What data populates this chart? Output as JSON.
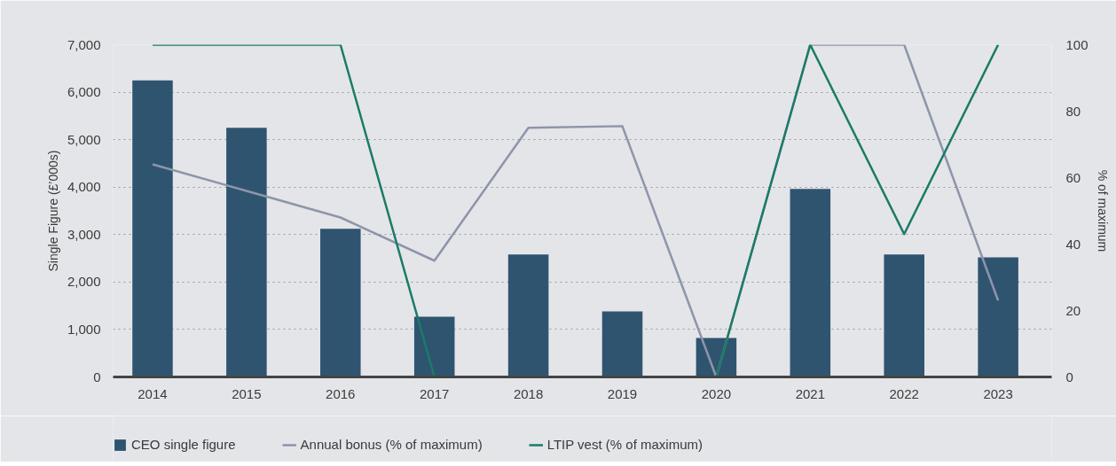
{
  "chart_data": {
    "type": "bar",
    "categories": [
      "2014",
      "2015",
      "2016",
      "2017",
      "2018",
      "2019",
      "2020",
      "2021",
      "2022",
      "2023"
    ],
    "ylabel": "Single Figure (£’000s)",
    "y2label": "% of maximum",
    "ylim": [
      0,
      7000
    ],
    "yticks": [
      0,
      {
        "value": 1000,
        "label": "1,000"
      },
      {
        "value": 2000,
        "label": "2,000"
      },
      {
        "value": 3000,
        "label": "3,000"
      },
      {
        "value": 4000,
        "label": "4,000"
      },
      {
        "value": 5000,
        "label": "5,000"
      },
      {
        "value": 6000,
        "label": "6,000"
      },
      {
        "value": 7000,
        "label": "7,000"
      }
    ],
    "y2lim": [
      0,
      100
    ],
    "y2ticks": [
      0,
      20,
      40,
      60,
      80,
      100
    ],
    "grid": "y",
    "legend": "bottom",
    "series": [
      {
        "name": "CEO single figure",
        "color": "#2f5470",
        "values": [
          6250,
          5250,
          3120,
          1270,
          2580,
          1380,
          820,
          3960,
          2580,
          2520
        ]
      },
      {
        "name": "Annual bonus (% of maximum)",
        "type": "line",
        "axis": "y2",
        "color": "#8d95aa",
        "values": [
          64,
          56,
          48,
          35,
          75,
          75.5,
          0,
          100,
          100,
          23
        ]
      },
      {
        "name": "LTIP vest (% of maximum)",
        "type": "line",
        "axis": "y2",
        "color": "#1b7b67",
        "values": [
          100,
          100,
          100,
          0,
          0,
          0,
          0,
          100,
          43,
          100
        ]
      }
    ]
  }
}
